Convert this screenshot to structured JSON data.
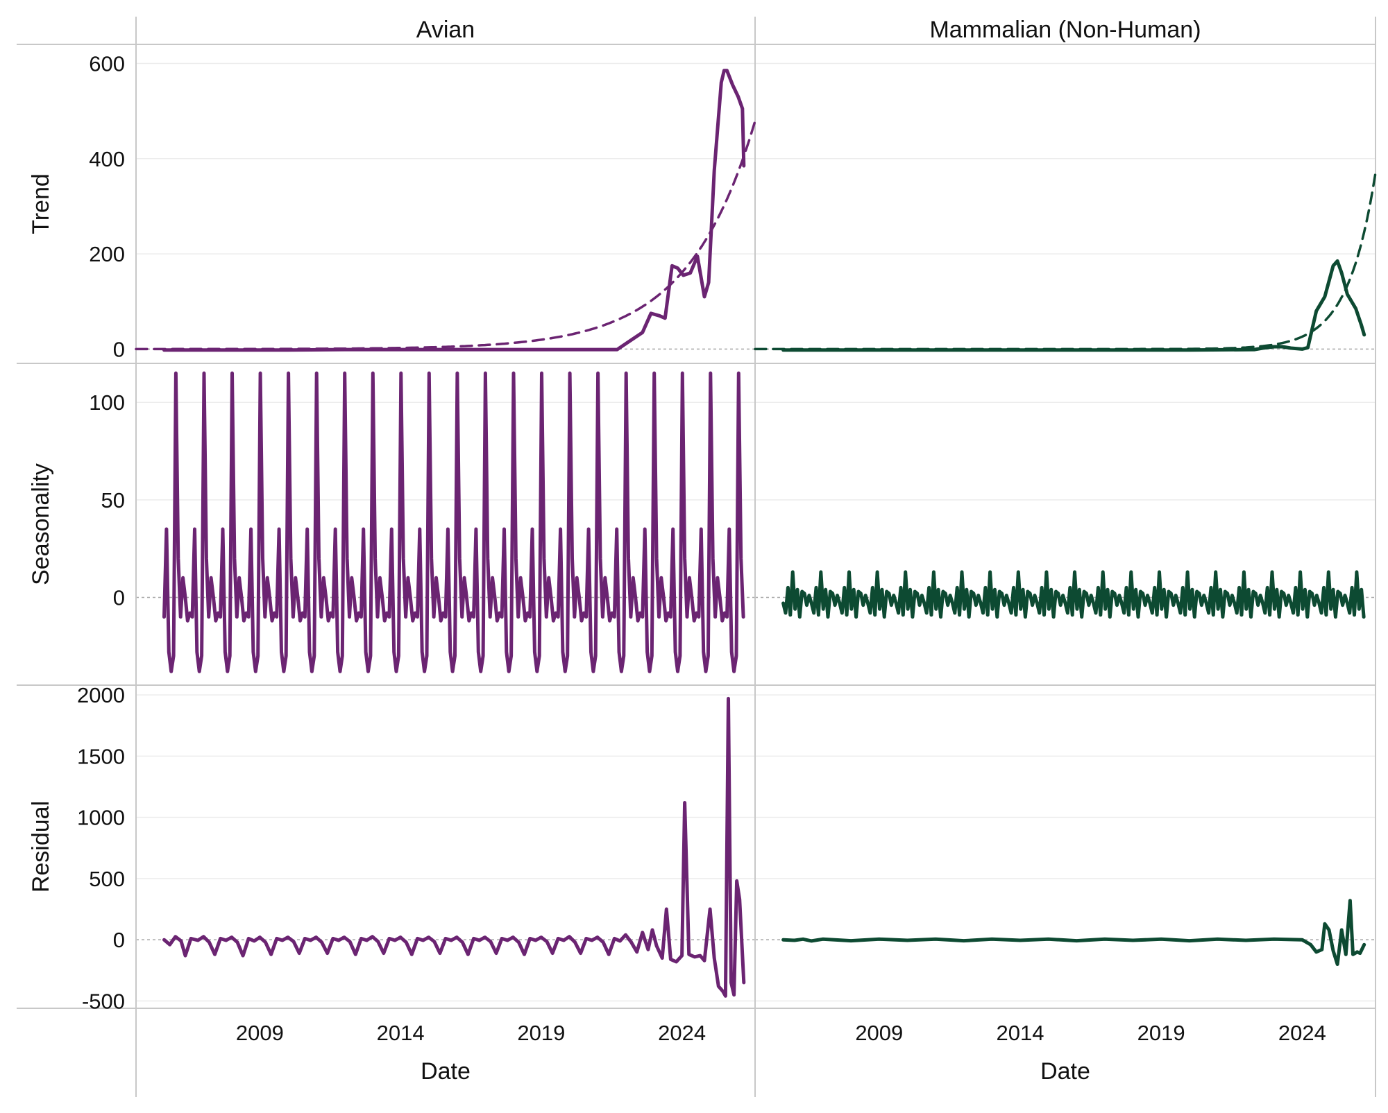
{
  "chart_data": {
    "type": "line",
    "columns": [
      {
        "title": "Avian",
        "color": "#6b2472"
      },
      {
        "title": "Mammalian (Non-Human)",
        "color": "#0d4a32"
      }
    ],
    "rows": [
      {
        "title": "Trend",
        "ylim": [
          -30,
          640
        ],
        "yticks": [
          0,
          200,
          400,
          600
        ]
      },
      {
        "title": "Seasonality",
        "ylim": [
          -45,
          120
        ],
        "yticks": [
          0,
          50,
          100
        ]
      },
      {
        "title": "Residual",
        "ylim": [
          -560,
          2080
        ],
        "yticks": [
          -500,
          0,
          500,
          1000,
          1500,
          2000
        ]
      }
    ],
    "xlim": [
      2004.6,
      2026.6
    ],
    "xticks": [
      2009,
      2014,
      2019,
      2024
    ],
    "xlabel": "Date",
    "panels": {
      "avian_trend": {
        "observed": [
          [
            2005.6,
            -2
          ],
          [
            2010,
            -2
          ],
          [
            2012,
            -1
          ],
          [
            2014,
            -1
          ],
          [
            2017,
            -1
          ],
          [
            2019,
            -1
          ],
          [
            2021,
            -1
          ],
          [
            2021.7,
            -1
          ],
          [
            2022.1,
            15
          ],
          [
            2022.6,
            35
          ],
          [
            2022.9,
            75
          ],
          [
            2023.2,
            70
          ],
          [
            2023.4,
            65
          ],
          [
            2023.65,
            175
          ],
          [
            2023.85,
            170
          ],
          [
            2024.05,
            155
          ],
          [
            2024.3,
            160
          ],
          [
            2024.55,
            195
          ],
          [
            2024.8,
            110
          ],
          [
            2024.95,
            140
          ],
          [
            2025.15,
            375
          ],
          [
            2025.4,
            560
          ],
          [
            2025.5,
            585
          ],
          [
            2025.6,
            585
          ],
          [
            2025.8,
            555
          ],
          [
            2026.0,
            530
          ],
          [
            2026.15,
            505
          ],
          [
            2026.2,
            385
          ]
        ],
        "fit_exponential": {
          "x_start": 2004.6,
          "x_end": 2026.6,
          "a": 0.055,
          "b": 0.42
        }
      },
      "mammal_trend": {
        "observed": [
          [
            2005.6,
            -2
          ],
          [
            2010,
            -2
          ],
          [
            2015,
            -2
          ],
          [
            2020,
            -2
          ],
          [
            2022.3,
            -1
          ],
          [
            2022.6,
            2
          ],
          [
            2023.0,
            5
          ],
          [
            2023.3,
            5
          ],
          [
            2023.6,
            2
          ],
          [
            2024.0,
            0
          ],
          [
            2024.2,
            3
          ],
          [
            2024.5,
            80
          ],
          [
            2024.8,
            110
          ],
          [
            2025.1,
            175
          ],
          [
            2025.25,
            185
          ],
          [
            2025.4,
            160
          ],
          [
            2025.6,
            115
          ],
          [
            2025.9,
            85
          ],
          [
            2026.1,
            50
          ],
          [
            2026.2,
            30
          ]
        ],
        "fit_exponential": {
          "x_start": 2004.6,
          "x_end": 2026.6,
          "a": 1e-07,
          "b": 1.02
        }
      },
      "avian_seasonal": {
        "x_start": 2005.6,
        "x_end": 2026.2,
        "cycle": [
          -10,
          35,
          -28,
          -38,
          -30,
          115,
          20,
          -10,
          10,
          0,
          -12,
          -8
        ]
      },
      "mammal_seasonal": {
        "x_start": 2005.6,
        "x_end": 2026.2,
        "cycle": [
          -3,
          -8,
          5,
          -9,
          13,
          -6,
          4,
          -10,
          3,
          2,
          -4,
          1
        ]
      },
      "avian_residual": {
        "observed": [
          [
            2005.6,
            0
          ],
          [
            2005.8,
            -40
          ],
          [
            2006.0,
            25
          ],
          [
            2006.2,
            -10
          ],
          [
            2006.35,
            -130
          ],
          [
            2006.55,
            10
          ],
          [
            2006.8,
            -5
          ],
          [
            2007.0,
            25
          ],
          [
            2007.2,
            -20
          ],
          [
            2007.4,
            -120
          ],
          [
            2007.6,
            10
          ],
          [
            2007.8,
            -5
          ],
          [
            2008.0,
            20
          ],
          [
            2008.2,
            -20
          ],
          [
            2008.4,
            -130
          ],
          [
            2008.6,
            10
          ],
          [
            2008.8,
            -10
          ],
          [
            2009.0,
            20
          ],
          [
            2009.2,
            -20
          ],
          [
            2009.4,
            -120
          ],
          [
            2009.6,
            10
          ],
          [
            2009.8,
            -5
          ],
          [
            2010.0,
            20
          ],
          [
            2010.2,
            -15
          ],
          [
            2010.4,
            -110
          ],
          [
            2010.6,
            10
          ],
          [
            2010.8,
            -5
          ],
          [
            2011.0,
            20
          ],
          [
            2011.2,
            -20
          ],
          [
            2011.4,
            -110
          ],
          [
            2011.6,
            10
          ],
          [
            2011.8,
            -5
          ],
          [
            2012.0,
            20
          ],
          [
            2012.2,
            -15
          ],
          [
            2012.4,
            -120
          ],
          [
            2012.6,
            10
          ],
          [
            2012.8,
            -5
          ],
          [
            2013.0,
            25
          ],
          [
            2013.2,
            -15
          ],
          [
            2013.4,
            -110
          ],
          [
            2013.6,
            10
          ],
          [
            2013.8,
            -5
          ],
          [
            2014.0,
            20
          ],
          [
            2014.2,
            -20
          ],
          [
            2014.4,
            -120
          ],
          [
            2014.6,
            10
          ],
          [
            2014.8,
            -5
          ],
          [
            2015.0,
            20
          ],
          [
            2015.2,
            -15
          ],
          [
            2015.4,
            -110
          ],
          [
            2015.6,
            10
          ],
          [
            2015.8,
            -5
          ],
          [
            2016.0,
            20
          ],
          [
            2016.2,
            -20
          ],
          [
            2016.4,
            -120
          ],
          [
            2016.6,
            10
          ],
          [
            2016.8,
            -5
          ],
          [
            2017.0,
            20
          ],
          [
            2017.2,
            -15
          ],
          [
            2017.4,
            -110
          ],
          [
            2017.6,
            10
          ],
          [
            2017.8,
            -5
          ],
          [
            2018.0,
            20
          ],
          [
            2018.2,
            -20
          ],
          [
            2018.4,
            -120
          ],
          [
            2018.6,
            10
          ],
          [
            2018.8,
            -5
          ],
          [
            2019.0,
            20
          ],
          [
            2019.2,
            -15
          ],
          [
            2019.4,
            -110
          ],
          [
            2019.6,
            10
          ],
          [
            2019.8,
            -5
          ],
          [
            2020.0,
            25
          ],
          [
            2020.2,
            -20
          ],
          [
            2020.4,
            -110
          ],
          [
            2020.6,
            10
          ],
          [
            2020.8,
            -5
          ],
          [
            2021.0,
            20
          ],
          [
            2021.2,
            -20
          ],
          [
            2021.4,
            -120
          ],
          [
            2021.6,
            10
          ],
          [
            2021.8,
            -10
          ],
          [
            2022.0,
            40
          ],
          [
            2022.2,
            -20
          ],
          [
            2022.4,
            -100
          ],
          [
            2022.6,
            60
          ],
          [
            2022.8,
            -80
          ],
          [
            2022.95,
            80
          ],
          [
            2023.1,
            -50
          ],
          [
            2023.3,
            -150
          ],
          [
            2023.45,
            250
          ],
          [
            2023.6,
            -160
          ],
          [
            2023.8,
            -180
          ],
          [
            2024.0,
            -130
          ],
          [
            2024.1,
            1120
          ],
          [
            2024.25,
            -120
          ],
          [
            2024.45,
            -140
          ],
          [
            2024.65,
            -130
          ],
          [
            2024.8,
            -170
          ],
          [
            2025.0,
            250
          ],
          [
            2025.15,
            -150
          ],
          [
            2025.3,
            -380
          ],
          [
            2025.45,
            -420
          ],
          [
            2025.55,
            -460
          ],
          [
            2025.65,
            1970
          ],
          [
            2025.75,
            -350
          ],
          [
            2025.85,
            -450
          ],
          [
            2025.95,
            480
          ],
          [
            2026.05,
            330
          ],
          [
            2026.2,
            -350
          ]
        ]
      },
      "mammal_residual": {
        "observed": [
          [
            2005.6,
            0
          ],
          [
            2006.0,
            -5
          ],
          [
            2006.3,
            5
          ],
          [
            2006.6,
            -10
          ],
          [
            2007.0,
            5
          ],
          [
            2008.0,
            -8
          ],
          [
            2009.0,
            5
          ],
          [
            2010.0,
            -5
          ],
          [
            2011.0,
            5
          ],
          [
            2012.0,
            -8
          ],
          [
            2013.0,
            5
          ],
          [
            2014.0,
            -5
          ],
          [
            2015.0,
            5
          ],
          [
            2016.0,
            -8
          ],
          [
            2017.0,
            5
          ],
          [
            2018.0,
            -5
          ],
          [
            2019.0,
            5
          ],
          [
            2020.0,
            -8
          ],
          [
            2021.0,
            5
          ],
          [
            2022.0,
            -5
          ],
          [
            2023.0,
            5
          ],
          [
            2024.0,
            0
          ],
          [
            2024.3,
            -40
          ],
          [
            2024.5,
            -100
          ],
          [
            2024.7,
            -80
          ],
          [
            2024.8,
            130
          ],
          [
            2024.95,
            80
          ],
          [
            2025.1,
            -90
          ],
          [
            2025.25,
            -200
          ],
          [
            2025.4,
            80
          ],
          [
            2025.55,
            -120
          ],
          [
            2025.7,
            320
          ],
          [
            2025.8,
            -120
          ],
          [
            2025.95,
            -100
          ],
          [
            2026.05,
            -110
          ],
          [
            2026.2,
            -40
          ]
        ]
      }
    }
  }
}
